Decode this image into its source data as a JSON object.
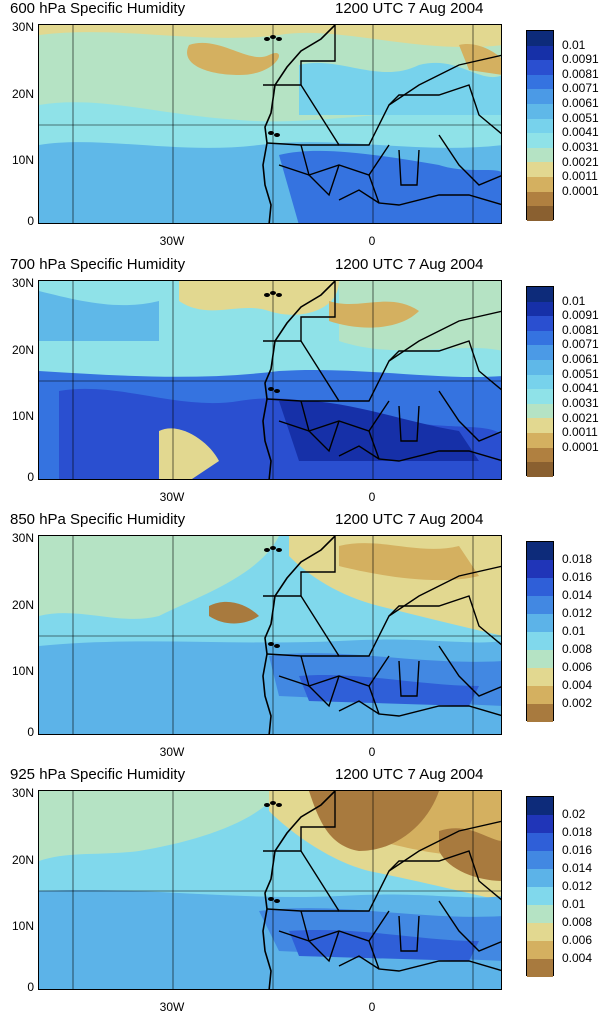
{
  "panels": [
    {
      "title": "600 hPa Specific Humidity",
      "time": "1200 UTC 7 Aug 2004",
      "y_ticks": [
        "30N",
        "20N",
        "10N",
        "0"
      ],
      "x_ticks": [
        "30W",
        "0"
      ],
      "colorbar_labels": [
        "0.01",
        "0.0091",
        "0.0081",
        "0.0071",
        "0.0061",
        "0.0051",
        "0.0041",
        "0.0031",
        "0.0021",
        "0.0011",
        "0.0001"
      ],
      "colorbar_colors": [
        "#0d2b7a",
        "#1630a8",
        "#2a4fd0",
        "#3573e0",
        "#4b9ae6",
        "#5fb8e8",
        "#77d2ec",
        "#8fe2e8",
        "#b5e3c4",
        "#e2d890",
        "#d4b060",
        "#b08040",
        "#8a6030"
      ]
    },
    {
      "title": "700 hPa Specific Humidity",
      "time": "1200 UTC 7 Aug 2004",
      "y_ticks": [
        "30N",
        "20N",
        "10N",
        "0"
      ],
      "x_ticks": [
        "30W",
        "0"
      ],
      "colorbar_labels": [
        "0.01",
        "0.0091",
        "0.0081",
        "0.0071",
        "0.0061",
        "0.0051",
        "0.0041",
        "0.0031",
        "0.0021",
        "0.0011",
        "0.0001"
      ],
      "colorbar_colors": [
        "#0d2b7a",
        "#1630a8",
        "#2a4fd0",
        "#3573e0",
        "#4b9ae6",
        "#5fb8e8",
        "#77d2ec",
        "#8fe2e8",
        "#b5e3c4",
        "#e2d890",
        "#d4b060",
        "#b08040",
        "#8a6030"
      ]
    },
    {
      "title": "850 hPa Specific Humidity",
      "time": "1200 UTC 7 Aug 2004",
      "y_ticks": [
        "30N",
        "20N",
        "10N",
        "0"
      ],
      "x_ticks": [
        "30W",
        "0"
      ],
      "colorbar_labels": [
        "0.018",
        "0.016",
        "0.014",
        "0.012",
        "0.01",
        "0.008",
        "0.006",
        "0.004",
        "0.002"
      ],
      "colorbar_colors": [
        "#0d2b7a",
        "#2035b8",
        "#2f5fd8",
        "#4288e2",
        "#5cb3e8",
        "#80d8ec",
        "#b5e3c4",
        "#e2d890",
        "#d4b060",
        "#a87a3e"
      ]
    },
    {
      "title": "925 hPa Specific Humidity",
      "time": "1200 UTC 7 Aug 2004",
      "y_ticks": [
        "30N",
        "20N",
        "10N",
        "0"
      ],
      "x_ticks": [
        "30W",
        "0"
      ],
      "colorbar_labels": [
        "0.02",
        "0.018",
        "0.016",
        "0.014",
        "0.012",
        "0.01",
        "0.008",
        "0.006",
        "0.004"
      ],
      "colorbar_colors": [
        "#0d2b7a",
        "#2035b8",
        "#2f5fd8",
        "#4288e2",
        "#5cb3e8",
        "#80d8ec",
        "#b5e3c4",
        "#e2d890",
        "#d4b060",
        "#a87a3e"
      ]
    }
  ]
}
